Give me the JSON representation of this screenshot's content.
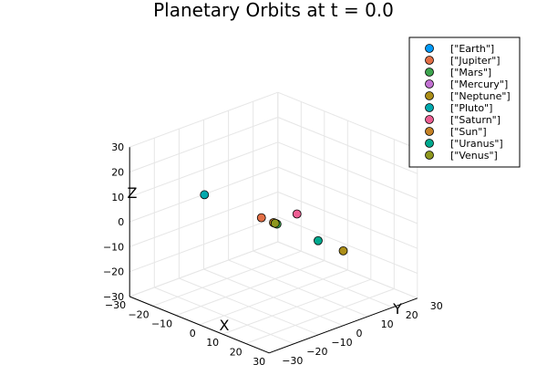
{
  "chart_data": {
    "type": "scatter",
    "title": "Planetary Orbits at t = 0.0",
    "xlabel": "X",
    "ylabel": "Y",
    "zlabel": "Z",
    "xlim": [
      -30,
      30
    ],
    "ylim": [
      -30,
      30
    ],
    "zlim": [
      -30,
      30
    ],
    "xticks": [
      -30,
      -20,
      -10,
      0,
      10,
      20,
      30
    ],
    "yticks": [
      -30,
      -20,
      -10,
      0,
      10,
      20,
      30
    ],
    "zticks": [
      -30,
      -20,
      -10,
      0,
      10,
      20,
      30
    ],
    "xtick_labels": [
      "−30",
      "−20",
      "−10",
      "0",
      "10",
      "20",
      "30"
    ],
    "ytick_labels": [
      "−30",
      "−20",
      "−10",
      "0",
      "10",
      "20",
      "30"
    ],
    "ztick_labels": [
      "−30",
      "−20",
      "−10",
      "0",
      "10",
      "20",
      "30"
    ],
    "grid": true,
    "legend_position": "top-right",
    "series": [
      {
        "name": "[\"Earth\"]",
        "color": "#009AFA",
        "points": [
          [
            1,
            0,
            0
          ]
        ]
      },
      {
        "name": "[\"Jupiter\"]",
        "color": "#E26F46",
        "points": [
          [
            -5.2,
            0,
            0
          ]
        ]
      },
      {
        "name": "[\"Mars\"]",
        "color": "#3DA44E",
        "points": [
          [
            1.5,
            0,
            0
          ]
        ]
      },
      {
        "name": "[\"Mercury\"]",
        "color": "#C271D2",
        "points": [
          [
            0.4,
            0,
            0
          ]
        ]
      },
      {
        "name": "[\"Neptune\"]",
        "color": "#AC8E18",
        "points": [
          [
            30,
            0,
            0
          ]
        ]
      },
      {
        "name": "[\"Pluto\"]",
        "color": "#00A9AD",
        "points": [
          [
            -29.7,
            0,
            0
          ]
        ]
      },
      {
        "name": "[\"Saturn\"]",
        "color": "#ED5E93",
        "points": [
          [
            0,
            9.5,
            0
          ]
        ]
      },
      {
        "name": "[\"Sun\"]",
        "color": "#C68225",
        "points": [
          [
            0,
            0,
            0
          ]
        ]
      },
      {
        "name": "[\"Uranus\"]",
        "color": "#00A98E",
        "points": [
          [
            19.2,
            0,
            0
          ]
        ]
      },
      {
        "name": "[\"Venus\"]",
        "color": "#8E971E",
        "points": [
          [
            0.7,
            0,
            0
          ]
        ]
      }
    ]
  }
}
